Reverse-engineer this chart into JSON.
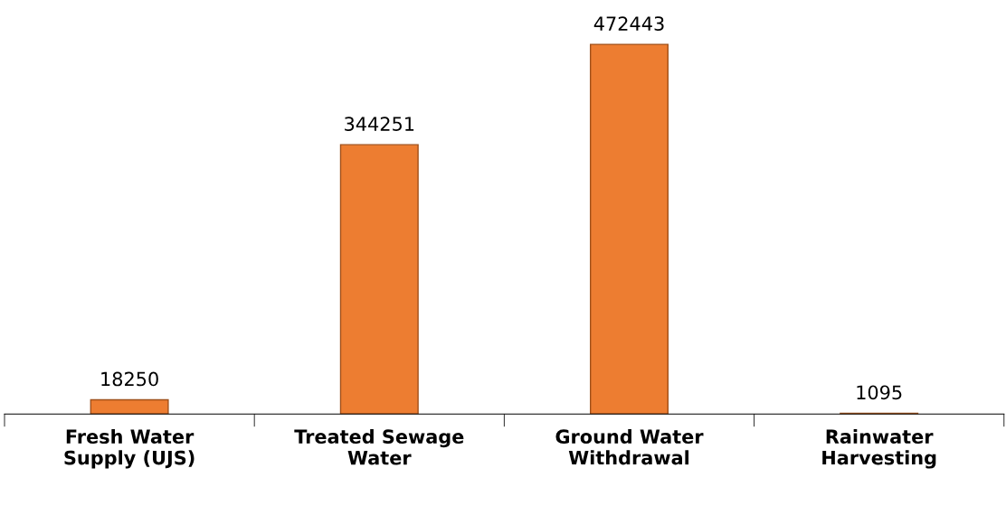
{
  "chart_data": {
    "type": "bar",
    "categories": [
      "Fresh Water\nSupply (UJS)",
      "Treated Sewage\nWater",
      "Ground Water\nWithdrawal",
      "Rainwater\nHarvesting"
    ],
    "values": [
      18250,
      344251,
      472443,
      1095
    ],
    "color": "#ed7d31",
    "data_labels": true
  }
}
